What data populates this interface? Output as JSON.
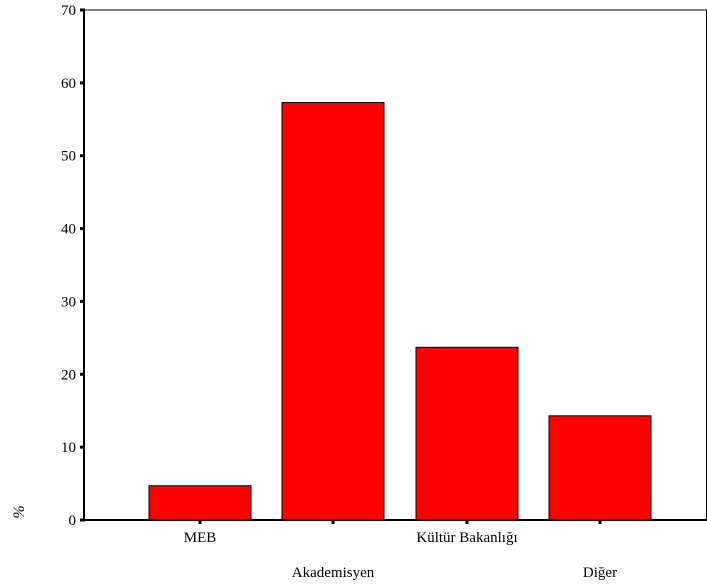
{
  "chart_data": {
    "type": "bar",
    "categories": [
      "MEB",
      "Akademisyen",
      "Kültür Bakanlığı",
      "Diğer"
    ],
    "values": [
      4.7,
      57.3,
      23.7,
      14.3
    ],
    "ylabel": "%",
    "ylim": [
      0,
      70
    ],
    "yticks": [
      0,
      10,
      20,
      30,
      40,
      50,
      60,
      70
    ],
    "grid": false,
    "bar_color": "#ff0000",
    "bar_edge_color": "#000000"
  }
}
